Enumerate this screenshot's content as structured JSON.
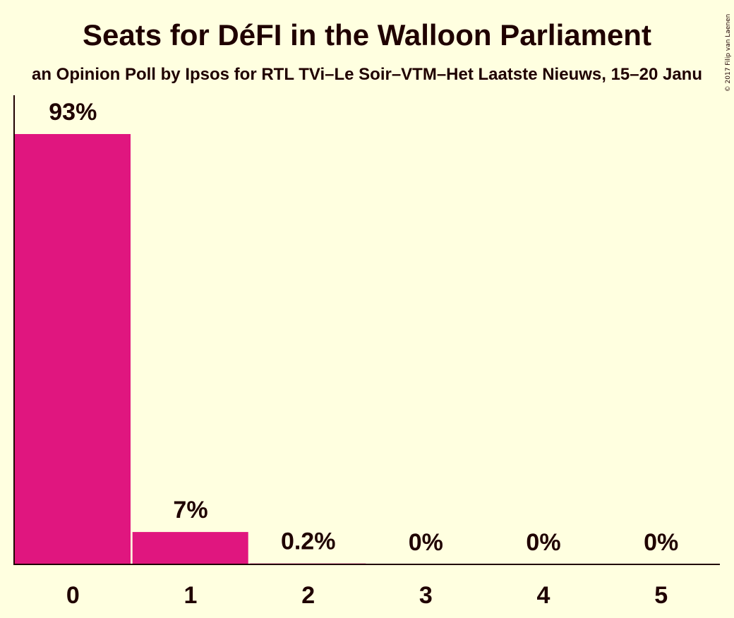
{
  "chart_data": {
    "type": "bar",
    "title": "Seats for DéFI in the Walloon Parliament",
    "subtitle": "an Opinion Poll by Ipsos for RTL TVi–Le Soir–VTM–Het Laatste Nieuws, 15–20 Janu",
    "credit": "© 2017 Filip van Laenen",
    "categories": [
      "0",
      "1",
      "2",
      "3",
      "4",
      "5"
    ],
    "values": [
      93,
      7,
      0.2,
      0,
      0,
      0
    ],
    "value_labels": [
      "93%",
      "7%",
      "0.2%",
      "0%",
      "0%",
      "0%"
    ],
    "xlabel": "",
    "ylabel": "",
    "ylim": [
      0,
      100
    ],
    "grid": false,
    "legend": "none",
    "bar_color": "#e0167f",
    "background_color": "#ffffe0",
    "text_color": "#1f0000"
  }
}
